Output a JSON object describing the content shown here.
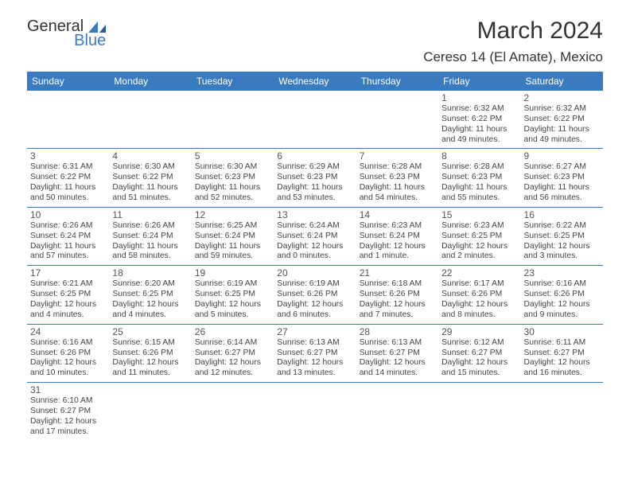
{
  "brand": {
    "part1": "General",
    "part2": "Blue"
  },
  "title": "March 2024",
  "location": "Cereso 14 (El Amate), Mexico",
  "colors": {
    "header_bg": "#3a7bbf",
    "header_text": "#ffffff",
    "border": "#3a7bbf",
    "text": "#444444",
    "daynum": "#555555",
    "bg": "#ffffff"
  },
  "fonts": {
    "title_size": 30,
    "location_size": 17,
    "dayhead_size": 12,
    "daynum_size": 12,
    "body_size": 10.3
  },
  "day_names": [
    "Sunday",
    "Monday",
    "Tuesday",
    "Wednesday",
    "Thursday",
    "Friday",
    "Saturday"
  ],
  "weeks": [
    [
      null,
      null,
      null,
      null,
      null,
      {
        "n": "1",
        "sr": "Sunrise: 6:32 AM",
        "ss": "Sunset: 6:22 PM",
        "d1": "Daylight: 11 hours",
        "d2": "and 49 minutes."
      },
      {
        "n": "2",
        "sr": "Sunrise: 6:32 AM",
        "ss": "Sunset: 6:22 PM",
        "d1": "Daylight: 11 hours",
        "d2": "and 49 minutes."
      }
    ],
    [
      {
        "n": "3",
        "sr": "Sunrise: 6:31 AM",
        "ss": "Sunset: 6:22 PM",
        "d1": "Daylight: 11 hours",
        "d2": "and 50 minutes."
      },
      {
        "n": "4",
        "sr": "Sunrise: 6:30 AM",
        "ss": "Sunset: 6:22 PM",
        "d1": "Daylight: 11 hours",
        "d2": "and 51 minutes."
      },
      {
        "n": "5",
        "sr": "Sunrise: 6:30 AM",
        "ss": "Sunset: 6:23 PM",
        "d1": "Daylight: 11 hours",
        "d2": "and 52 minutes."
      },
      {
        "n": "6",
        "sr": "Sunrise: 6:29 AM",
        "ss": "Sunset: 6:23 PM",
        "d1": "Daylight: 11 hours",
        "d2": "and 53 minutes."
      },
      {
        "n": "7",
        "sr": "Sunrise: 6:28 AM",
        "ss": "Sunset: 6:23 PM",
        "d1": "Daylight: 11 hours",
        "d2": "and 54 minutes."
      },
      {
        "n": "8",
        "sr": "Sunrise: 6:28 AM",
        "ss": "Sunset: 6:23 PM",
        "d1": "Daylight: 11 hours",
        "d2": "and 55 minutes."
      },
      {
        "n": "9",
        "sr": "Sunrise: 6:27 AM",
        "ss": "Sunset: 6:23 PM",
        "d1": "Daylight: 11 hours",
        "d2": "and 56 minutes."
      }
    ],
    [
      {
        "n": "10",
        "sr": "Sunrise: 6:26 AM",
        "ss": "Sunset: 6:24 PM",
        "d1": "Daylight: 11 hours",
        "d2": "and 57 minutes."
      },
      {
        "n": "11",
        "sr": "Sunrise: 6:26 AM",
        "ss": "Sunset: 6:24 PM",
        "d1": "Daylight: 11 hours",
        "d2": "and 58 minutes."
      },
      {
        "n": "12",
        "sr": "Sunrise: 6:25 AM",
        "ss": "Sunset: 6:24 PM",
        "d1": "Daylight: 11 hours",
        "d2": "and 59 minutes."
      },
      {
        "n": "13",
        "sr": "Sunrise: 6:24 AM",
        "ss": "Sunset: 6:24 PM",
        "d1": "Daylight: 12 hours",
        "d2": "and 0 minutes."
      },
      {
        "n": "14",
        "sr": "Sunrise: 6:23 AM",
        "ss": "Sunset: 6:24 PM",
        "d1": "Daylight: 12 hours",
        "d2": "and 1 minute."
      },
      {
        "n": "15",
        "sr": "Sunrise: 6:23 AM",
        "ss": "Sunset: 6:25 PM",
        "d1": "Daylight: 12 hours",
        "d2": "and 2 minutes."
      },
      {
        "n": "16",
        "sr": "Sunrise: 6:22 AM",
        "ss": "Sunset: 6:25 PM",
        "d1": "Daylight: 12 hours",
        "d2": "and 3 minutes."
      }
    ],
    [
      {
        "n": "17",
        "sr": "Sunrise: 6:21 AM",
        "ss": "Sunset: 6:25 PM",
        "d1": "Daylight: 12 hours",
        "d2": "and 4 minutes."
      },
      {
        "n": "18",
        "sr": "Sunrise: 6:20 AM",
        "ss": "Sunset: 6:25 PM",
        "d1": "Daylight: 12 hours",
        "d2": "and 4 minutes."
      },
      {
        "n": "19",
        "sr": "Sunrise: 6:19 AM",
        "ss": "Sunset: 6:25 PM",
        "d1": "Daylight: 12 hours",
        "d2": "and 5 minutes."
      },
      {
        "n": "20",
        "sr": "Sunrise: 6:19 AM",
        "ss": "Sunset: 6:26 PM",
        "d1": "Daylight: 12 hours",
        "d2": "and 6 minutes."
      },
      {
        "n": "21",
        "sr": "Sunrise: 6:18 AM",
        "ss": "Sunset: 6:26 PM",
        "d1": "Daylight: 12 hours",
        "d2": "and 7 minutes."
      },
      {
        "n": "22",
        "sr": "Sunrise: 6:17 AM",
        "ss": "Sunset: 6:26 PM",
        "d1": "Daylight: 12 hours",
        "d2": "and 8 minutes."
      },
      {
        "n": "23",
        "sr": "Sunrise: 6:16 AM",
        "ss": "Sunset: 6:26 PM",
        "d1": "Daylight: 12 hours",
        "d2": "and 9 minutes."
      }
    ],
    [
      {
        "n": "24",
        "sr": "Sunrise: 6:16 AM",
        "ss": "Sunset: 6:26 PM",
        "d1": "Daylight: 12 hours",
        "d2": "and 10 minutes."
      },
      {
        "n": "25",
        "sr": "Sunrise: 6:15 AM",
        "ss": "Sunset: 6:26 PM",
        "d1": "Daylight: 12 hours",
        "d2": "and 11 minutes."
      },
      {
        "n": "26",
        "sr": "Sunrise: 6:14 AM",
        "ss": "Sunset: 6:27 PM",
        "d1": "Daylight: 12 hours",
        "d2": "and 12 minutes."
      },
      {
        "n": "27",
        "sr": "Sunrise: 6:13 AM",
        "ss": "Sunset: 6:27 PM",
        "d1": "Daylight: 12 hours",
        "d2": "and 13 minutes."
      },
      {
        "n": "28",
        "sr": "Sunrise: 6:13 AM",
        "ss": "Sunset: 6:27 PM",
        "d1": "Daylight: 12 hours",
        "d2": "and 14 minutes."
      },
      {
        "n": "29",
        "sr": "Sunrise: 6:12 AM",
        "ss": "Sunset: 6:27 PM",
        "d1": "Daylight: 12 hours",
        "d2": "and 15 minutes."
      },
      {
        "n": "30",
        "sr": "Sunrise: 6:11 AM",
        "ss": "Sunset: 6:27 PM",
        "d1": "Daylight: 12 hours",
        "d2": "and 16 minutes."
      }
    ],
    [
      {
        "n": "31",
        "sr": "Sunrise: 6:10 AM",
        "ss": "Sunset: 6:27 PM",
        "d1": "Daylight: 12 hours",
        "d2": "and 17 minutes."
      },
      null,
      null,
      null,
      null,
      null,
      null
    ]
  ]
}
